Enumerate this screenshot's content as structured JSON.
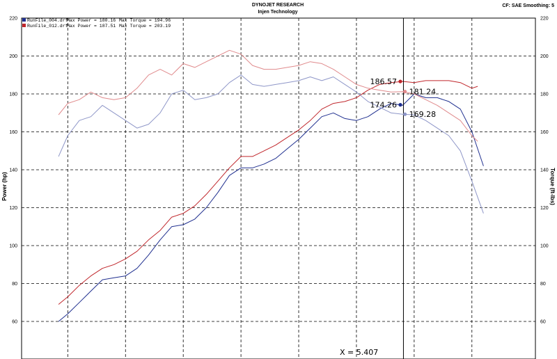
{
  "header": {
    "title": "DYNOJET RESEARCH",
    "subtitle": "Injen Technology",
    "settings": "CF: SAE  Smoothing: 5"
  },
  "legend": [
    {
      "file": "RunFile_004.drf",
      "max_power": "Max Power = 180.16",
      "max_torque": "Max Torque = 194.96",
      "color": "#1f2f8f"
    },
    {
      "file": "RunFile_012.drf",
      "max_power": "Max Power = 187.51",
      "max_torque": "Max Torque = 203.19",
      "color": "#c0262b"
    }
  ],
  "cursor": {
    "label": "X = 5.407",
    "x": 5.407
  },
  "chart_data": {
    "type": "line",
    "title": "DYNOJET RESEARCH",
    "subtitle": "Injen Technology",
    "xlabel": "",
    "ylabel": "Power (hp)",
    "y2label": "Torque (ft-lbs)",
    "xlim": [
      2.1,
      6.55
    ],
    "ylim": [
      58,
      220
    ],
    "y2lim": [
      58,
      220
    ],
    "grid": true,
    "yticks": [
      60,
      80,
      100,
      120,
      140,
      160,
      180,
      200,
      220
    ],
    "xgrid": [
      2.5,
      3.0,
      3.5,
      4.0,
      4.5,
      5.0,
      5.5,
      6.0
    ],
    "series": [
      {
        "name": "RunFile_004.drf",
        "quantity": "power",
        "color": "#1f2f8f",
        "x": [
          2.42,
          2.5,
          2.6,
          2.7,
          2.8,
          2.9,
          3.0,
          3.1,
          3.2,
          3.3,
          3.4,
          3.5,
          3.6,
          3.7,
          3.8,
          3.9,
          4.0,
          4.1,
          4.2,
          4.3,
          4.4,
          4.5,
          4.6,
          4.7,
          4.8,
          4.9,
          5.0,
          5.1,
          5.2,
          5.3,
          5.4,
          5.5,
          5.6,
          5.7,
          5.8,
          5.9,
          6.0,
          6.1
        ],
        "y": [
          60,
          64,
          70,
          76,
          82,
          83,
          84,
          88,
          95,
          103,
          110,
          111,
          114,
          120,
          128,
          137,
          141,
          141,
          143,
          146,
          151,
          156,
          162,
          168,
          170,
          167,
          166,
          168,
          172,
          175,
          174,
          180,
          178,
          178,
          176,
          172,
          160,
          142
        ]
      },
      {
        "name": "RunFile_012.drf",
        "quantity": "power",
        "color": "#c0262b",
        "x": [
          2.42,
          2.5,
          2.6,
          2.7,
          2.8,
          2.9,
          3.0,
          3.1,
          3.2,
          3.3,
          3.4,
          3.5,
          3.6,
          3.7,
          3.8,
          3.9,
          4.0,
          4.1,
          4.2,
          4.3,
          4.4,
          4.5,
          4.6,
          4.7,
          4.8,
          4.9,
          5.0,
          5.1,
          5.2,
          5.3,
          5.4,
          5.5,
          5.6,
          5.7,
          5.8,
          5.9,
          6.0,
          6.05
        ],
        "y": [
          69,
          73,
          79,
          84,
          88,
          90,
          93,
          97,
          103,
          108,
          115,
          117,
          121,
          127,
          134,
          141,
          147,
          147,
          150,
          153,
          157,
          161,
          166,
          172,
          175,
          176,
          178,
          182,
          185,
          186,
          186.6,
          186,
          187,
          187,
          187,
          186,
          183,
          184
        ]
      },
      {
        "name": "RunFile_004.drf",
        "quantity": "torque",
        "color": "#8e96c8",
        "x": [
          2.42,
          2.5,
          2.6,
          2.7,
          2.8,
          2.9,
          3.0,
          3.1,
          3.2,
          3.3,
          3.4,
          3.5,
          3.6,
          3.7,
          3.8,
          3.9,
          4.0,
          4.1,
          4.2,
          4.3,
          4.4,
          4.5,
          4.6,
          4.7,
          4.8,
          4.9,
          5.0,
          5.1,
          5.2,
          5.3,
          5.4,
          5.5,
          5.6,
          5.7,
          5.8,
          5.9,
          6.0,
          6.1
        ],
        "y": [
          147,
          158,
          166,
          168,
          174,
          170,
          166,
          162,
          164,
          170,
          180,
          182,
          177,
          178,
          180,
          186,
          190,
          185,
          184,
          185,
          186,
          187,
          189,
          187,
          189,
          185,
          181,
          176,
          173,
          170,
          169.3,
          169,
          166,
          162,
          158,
          150,
          134,
          117
        ]
      },
      {
        "name": "RunFile_012.drf",
        "quantity": "torque",
        "color": "#e08a8c",
        "x": [
          2.42,
          2.5,
          2.6,
          2.7,
          2.8,
          2.9,
          3.0,
          3.1,
          3.2,
          3.3,
          3.4,
          3.5,
          3.6,
          3.7,
          3.8,
          3.9,
          4.0,
          4.1,
          4.2,
          4.3,
          4.4,
          4.5,
          4.6,
          4.7,
          4.8,
          4.9,
          5.0,
          5.1,
          5.2,
          5.3,
          5.4,
          5.5,
          5.6,
          5.7,
          5.8,
          5.9,
          6.0,
          6.05
        ],
        "y": [
          169,
          175,
          177,
          181,
          178,
          177,
          178,
          183,
          190,
          193,
          190,
          196,
          194,
          197,
          200,
          203,
          201,
          195,
          193,
          193,
          194,
          195,
          197,
          196,
          193,
          189,
          185,
          183,
          182,
          181,
          181.2,
          180,
          177,
          174,
          170,
          166,
          158,
          155
        ]
      }
    ],
    "annotations": [
      {
        "label": "186.57",
        "x": 5.38,
        "y": 186.57,
        "color": "#c0262b"
      },
      {
        "label": "181.24",
        "x": 5.42,
        "y": 181.24,
        "color": "#e08a8c"
      },
      {
        "label": "174.26",
        "x": 5.38,
        "y": 174.26,
        "color": "#1f2f8f"
      },
      {
        "label": "169.28",
        "x": 5.42,
        "y": 169.28,
        "color": "#8e96c8"
      }
    ]
  }
}
